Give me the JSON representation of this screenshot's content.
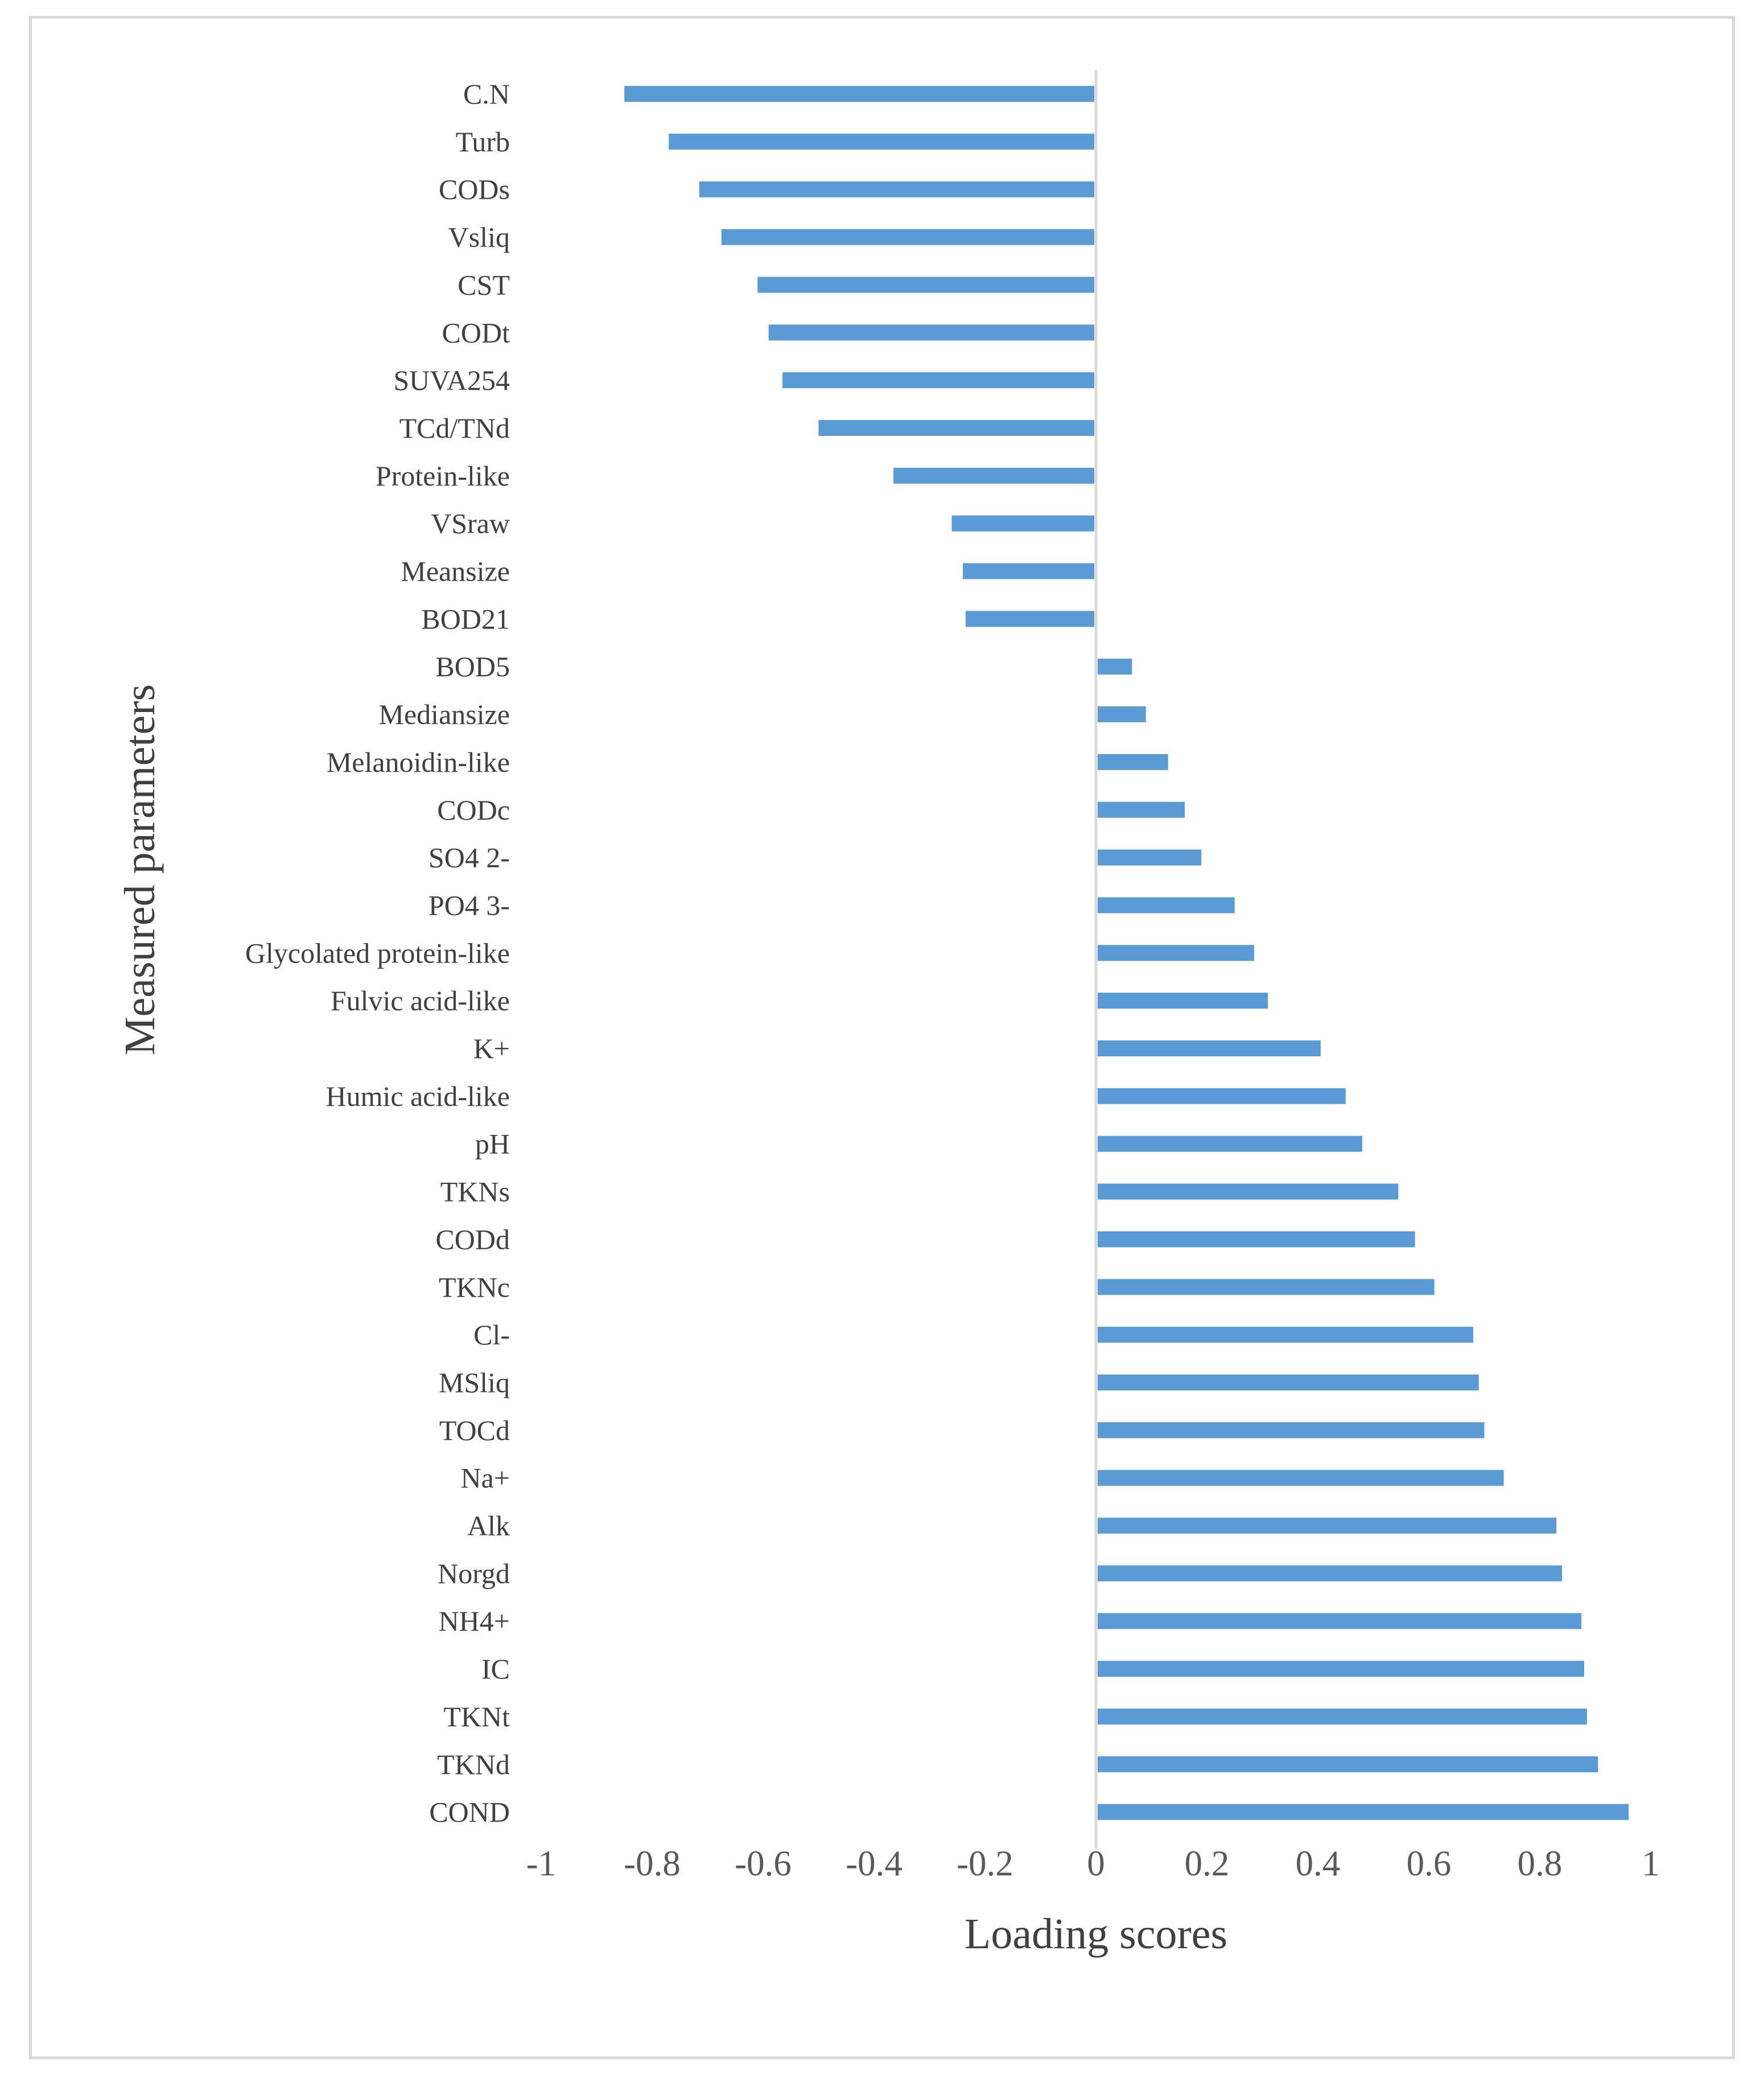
{
  "chart_data": {
    "type": "bar",
    "orientation": "horizontal",
    "xlabel": "Loading scores",
    "ylabel": "Measured parameters",
    "xlim": [
      -1,
      1
    ],
    "xticks": [
      "-1",
      "-0.8",
      "-0.6",
      "-0.4",
      "-0.2",
      "0",
      "0.2",
      "0.4",
      "0.6",
      "0.8",
      "1"
    ],
    "grid": false,
    "legend": "none",
    "bar_color": "#5b9bd5",
    "categories": [
      "C.N",
      "Turb",
      "CODs",
      "Vsliq",
      "CST",
      "CODt",
      "SUVA254",
      "TCd/TNd",
      "Protein-like",
      "VSraw",
      "Meansize",
      "BOD21",
      "BOD5",
      "Mediansize",
      "Melanoidin-like",
      "CODc",
      "SO4 2-",
      "PO4 3-",
      "Glycolated protein-like",
      "Fulvic acid-like",
      "K+",
      "Humic acid-like",
      "pH",
      "TKNs",
      "CODd",
      "TKNc",
      "Cl-",
      "MSliq",
      "TOCd",
      "Na+",
      "Alk",
      "Norgd",
      "NH4+",
      "IC",
      "TKNt",
      "TKNd",
      "COND"
    ],
    "values": [
      -0.85,
      -0.77,
      -0.715,
      -0.675,
      -0.61,
      -0.59,
      -0.565,
      -0.5,
      -0.365,
      -0.26,
      -0.24,
      -0.235,
      0.065,
      0.09,
      0.13,
      0.16,
      0.19,
      0.25,
      0.285,
      0.31,
      0.405,
      0.45,
      0.48,
      0.545,
      0.575,
      0.61,
      0.68,
      0.69,
      0.7,
      0.735,
      0.83,
      0.84,
      0.875,
      0.88,
      0.885,
      0.905,
      0.96
    ]
  }
}
